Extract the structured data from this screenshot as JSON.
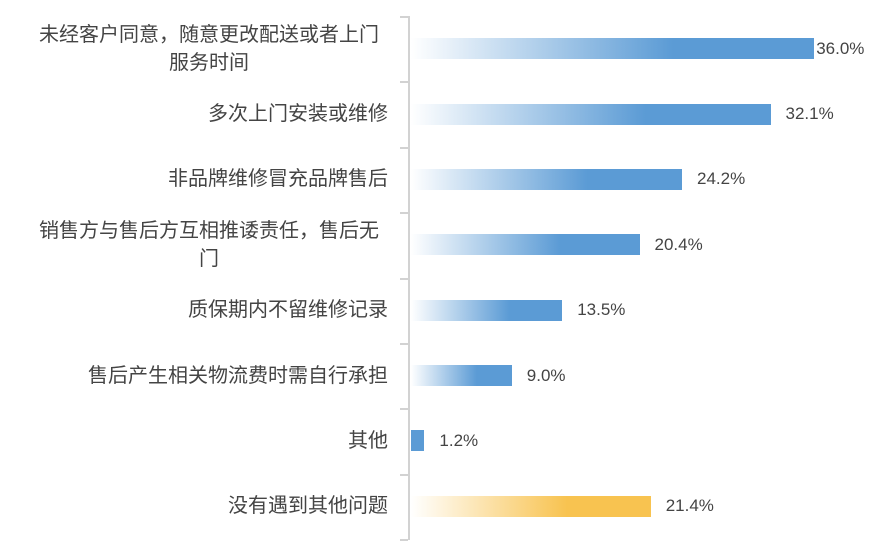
{
  "chart_data": {
    "type": "bar",
    "orientation": "horizontal",
    "title": "",
    "xlabel": "",
    "ylabel": "",
    "legend": "none",
    "gridlines": "off",
    "value_axis": "hidden",
    "xlim": [
      0,
      40
    ],
    "categories": [
      "未经客户同意，随意更改配送或者上门服务时间",
      "多次上门安装或维修",
      "非品牌维修冒充品牌售后",
      "销售方与售后方互相推诿责任，售后无门",
      "质保期内不留维修记录",
      "售后产生相关物流费时需自行承担",
      "其他",
      "没有遇到其他问题"
    ],
    "values": [
      36.0,
      32.1,
      24.2,
      20.4,
      13.5,
      9.0,
      1.2,
      21.4
    ],
    "value_labels": [
      "36.0%",
      "32.1%",
      "24.2%",
      "20.4%",
      "13.5%",
      "9.0%",
      "1.2%",
      "21.4%"
    ],
    "bar_colors": [
      "#5B9BD5",
      "#5B9BD5",
      "#5B9BD5",
      "#5B9BD5",
      "#5B9BD5",
      "#5B9BD5",
      "#5B9BD5",
      "#F8C350"
    ],
    "fill_styles": [
      "gradient",
      "gradient",
      "gradient",
      "gradient",
      "gradient",
      "gradient",
      "solid",
      "gradient"
    ],
    "gradient_start_color": "#FFFFFF"
  },
  "colors": {
    "bar_blue": "#5B9BD5",
    "bar_gold": "#F8C350",
    "axis_line": "#D2D2D2",
    "text": "#444444",
    "background": "#FFFFFF"
  }
}
